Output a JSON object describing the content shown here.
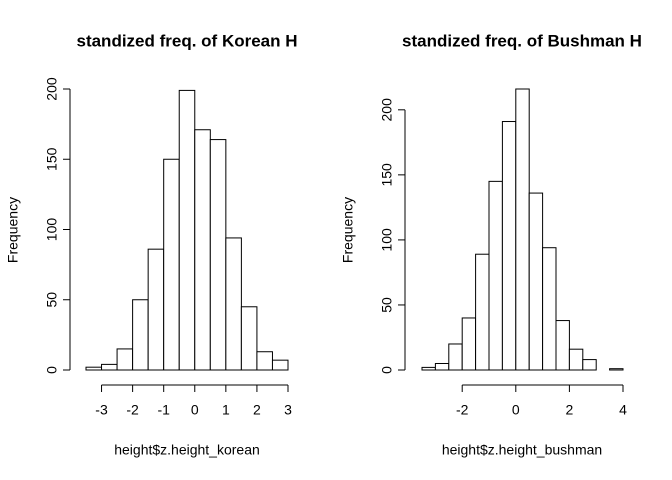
{
  "chart_data": [
    {
      "type": "histogram",
      "title": "standized freq. of Korean H",
      "x_label": "height$z.height_korean",
      "y_label": "Frequency",
      "bins": [
        -3.5,
        -3,
        -2.5,
        -2,
        -1.5,
        -1,
        -0.5,
        0,
        0.5,
        1,
        1.5,
        2,
        2.5,
        3
      ],
      "values": [
        2,
        4,
        15,
        50,
        86,
        150,
        199,
        171,
        164,
        94,
        45,
        13,
        7
      ],
      "color": "#ffffff",
      "xlim": [
        -3.5,
        3
      ],
      "xticks": [
        -3,
        -2,
        -1,
        0,
        1,
        2,
        3
      ],
      "ylim": [
        0,
        200
      ],
      "yticks": [
        0,
        50,
        100,
        150,
        200
      ]
    },
    {
      "type": "histogram",
      "title": "standized freq. of Bushman H",
      "x_label": "height$z.height_bushman",
      "y_label": "Frequency",
      "bins": [
        -3.5,
        -3,
        -2.5,
        -2,
        -1.5,
        -1,
        -0.5,
        0,
        0.5,
        1,
        1.5,
        2,
        2.5,
        3,
        3.5,
        4
      ],
      "values": [
        2,
        5,
        20,
        40,
        89,
        145,
        191,
        216,
        136,
        94,
        38,
        16,
        8,
        0,
        1
      ],
      "color": "#ffffff",
      "xlim": [
        -3.5,
        4
      ],
      "xticks": [
        -2,
        0,
        2,
        4
      ],
      "ylim": [
        0,
        216
      ],
      "yticks": [
        0,
        50,
        100,
        150,
        200
      ]
    }
  ]
}
